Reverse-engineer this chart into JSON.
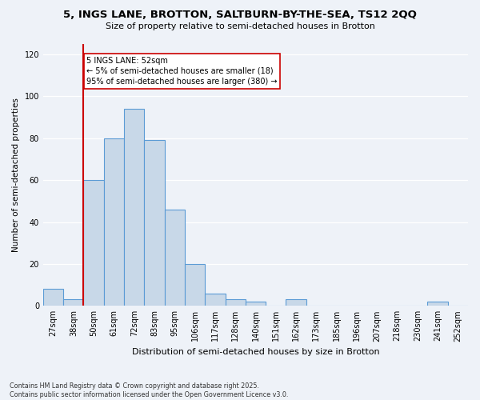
{
  "title_line1": "5, INGS LANE, BROTTON, SALTBURN-BY-THE-SEA, TS12 2QQ",
  "title_line2": "Size of property relative to semi-detached houses in Brotton",
  "xlabel": "Distribution of semi-detached houses by size in Brotton",
  "ylabel": "Number of semi-detached properties",
  "categories": [
    "27sqm",
    "38sqm",
    "50sqm",
    "61sqm",
    "72sqm",
    "83sqm",
    "95sqm",
    "106sqm",
    "117sqm",
    "128sqm",
    "140sqm",
    "151sqm",
    "162sqm",
    "173sqm",
    "185sqm",
    "196sqm",
    "207sqm",
    "218sqm",
    "230sqm",
    "241sqm",
    "252sqm"
  ],
  "values": [
    8,
    3,
    60,
    80,
    94,
    79,
    46,
    20,
    6,
    3,
    2,
    0,
    3,
    0,
    0,
    0,
    0,
    0,
    0,
    2,
    0
  ],
  "bar_color": "#c8d8e8",
  "bar_edge_color": "#5b9bd5",
  "annotation_text": "5 INGS LANE: 52sqm\n← 5% of semi-detached houses are smaller (18)\n95% of semi-detached houses are larger (380) →",
  "annotation_box_color": "#ffffff",
  "annotation_box_edge_color": "#cc0000",
  "vline_color": "#cc0000",
  "vline_x": 1.5,
  "ylim": [
    0,
    125
  ],
  "yticks": [
    0,
    20,
    40,
    60,
    80,
    100,
    120
  ],
  "background_color": "#eef2f8",
  "grid_color": "#ffffff",
  "footnote": "Contains HM Land Registry data © Crown copyright and database right 2025.\nContains public sector information licensed under the Open Government Licence v3.0."
}
